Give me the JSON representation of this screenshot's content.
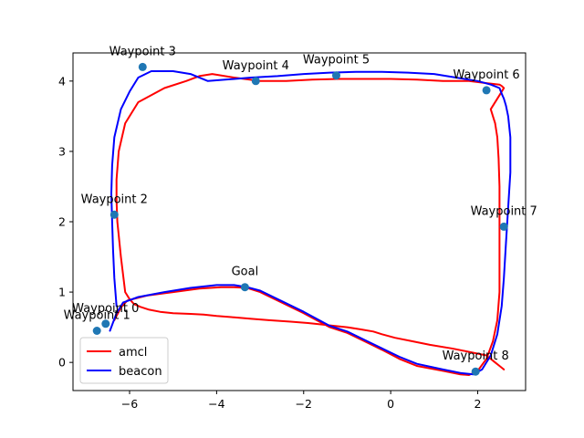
{
  "chart_data": {
    "type": "line",
    "title": "",
    "xlabel": "",
    "ylabel": "",
    "xlim": [
      -7.3,
      3.1
    ],
    "ylim": [
      -0.4,
      4.4
    ],
    "xticks": [
      -6,
      -4,
      -2,
      0,
      2
    ],
    "xtick_labels": [
      "−6",
      "−4",
      "−2",
      "0",
      "2"
    ],
    "yticks": [
      0,
      1,
      2,
      3,
      4
    ],
    "ytick_labels": [
      "0",
      "1",
      "2",
      "3",
      "4"
    ],
    "grid": false,
    "legend_position": "lower-left",
    "series": [
      {
        "name": "amcl",
        "color": "#ff0000",
        "x": [
          -6.35,
          -6.2,
          -6.05,
          -5.6,
          -5.0,
          -4.4,
          -3.9,
          -3.6,
          -3.3,
          -3.0,
          -2.6,
          -2.0,
          -1.4,
          -1.0,
          -0.6,
          -0.2,
          0.2,
          0.6,
          1.2,
          1.6,
          1.8,
          2.0,
          2.2,
          2.35,
          2.45,
          2.5,
          2.5,
          2.5,
          2.5,
          2.48,
          2.45,
          2.4,
          2.35,
          2.3,
          2.5,
          2.6,
          2.55,
          2.5,
          2.2,
          1.8,
          1.2,
          0.6,
          0.0,
          -0.6,
          -1.2,
          -1.8,
          -2.4,
          -3.0,
          -3.6,
          -4.1,
          -4.4,
          -4.7,
          -5.2,
          -5.8,
          -6.1,
          -6.25,
          -6.3,
          -6.3,
          -6.28,
          -6.2,
          -6.1,
          -6.0,
          -5.9,
          -5.75,
          -5.55,
          -5.3,
          -5.0,
          -4.6,
          -4.3,
          -4.0,
          -3.6,
          -3.2,
          -2.8,
          -2.3,
          -1.9,
          -1.6,
          -1.3,
          -1.0,
          -0.7,
          -0.4,
          -0.2,
          0.1,
          0.5,
          0.9,
          1.4,
          1.8,
          2.2,
          2.4,
          2.5,
          2.6
        ],
        "y": [
          0.6,
          0.78,
          0.88,
          0.95,
          1.0,
          1.05,
          1.07,
          1.07,
          1.06,
          1.0,
          0.88,
          0.7,
          0.5,
          0.42,
          0.3,
          0.18,
          0.05,
          -0.05,
          -0.12,
          -0.17,
          -0.18,
          -0.12,
          0.05,
          0.3,
          0.6,
          1.0,
          1.5,
          2.0,
          2.5,
          2.9,
          3.2,
          3.4,
          3.5,
          3.6,
          3.8,
          3.9,
          3.93,
          3.95,
          3.97,
          4.0,
          4.0,
          4.02,
          4.03,
          4.03,
          4.03,
          4.02,
          4.0,
          4.0,
          4.05,
          4.1,
          4.07,
          4.0,
          3.9,
          3.7,
          3.4,
          3.0,
          2.6,
          2.3,
          2.0,
          1.5,
          1.0,
          0.9,
          0.83,
          0.79,
          0.75,
          0.72,
          0.7,
          0.69,
          0.68,
          0.66,
          0.64,
          0.62,
          0.6,
          0.58,
          0.56,
          0.54,
          0.52,
          0.5,
          0.47,
          0.44,
          0.4,
          0.35,
          0.3,
          0.25,
          0.2,
          0.15,
          0.1,
          0.0,
          -0.05,
          -0.1
        ]
      },
      {
        "name": "beacon",
        "color": "#0000ff",
        "x": [
          -6.45,
          -6.3,
          -6.15,
          -5.8,
          -5.2,
          -4.6,
          -4.0,
          -3.6,
          -3.3,
          -3.0,
          -2.6,
          -2.0,
          -1.4,
          -1.0,
          -0.6,
          -0.2,
          0.2,
          0.6,
          1.2,
          1.6,
          1.9,
          2.1,
          2.3,
          2.45,
          2.55,
          2.6,
          2.65,
          2.7,
          2.75,
          2.75,
          2.7,
          2.65,
          2.6,
          2.55,
          2.5,
          2.3,
          2.0,
          1.5,
          1.0,
          0.4,
          -0.2,
          -0.8,
          -1.4,
          -2.0,
          -2.6,
          -3.2,
          -3.8,
          -4.2,
          -4.6,
          -5.0,
          -5.5,
          -5.8,
          -6.0,
          -6.2,
          -6.35,
          -6.4,
          -6.42,
          -6.4,
          -6.38,
          -6.35,
          -6.3
        ],
        "y": [
          0.45,
          0.7,
          0.85,
          0.93,
          1.0,
          1.06,
          1.1,
          1.1,
          1.07,
          1.02,
          0.9,
          0.72,
          0.52,
          0.44,
          0.32,
          0.2,
          0.08,
          -0.02,
          -0.1,
          -0.15,
          -0.17,
          -0.1,
          0.1,
          0.4,
          0.8,
          1.2,
          1.7,
          2.2,
          2.7,
          3.2,
          3.5,
          3.65,
          3.75,
          3.82,
          3.9,
          3.95,
          4.0,
          4.05,
          4.1,
          4.12,
          4.13,
          4.13,
          4.12,
          4.1,
          4.07,
          4.05,
          4.02,
          4.0,
          4.1,
          4.14,
          4.14,
          4.05,
          3.85,
          3.6,
          3.2,
          2.8,
          2.4,
          2.0,
          1.6,
          1.2,
          0.8
        ]
      }
    ],
    "points": {
      "color": "#1f77b4",
      "items": [
        {
          "label": "Waypoint 0",
          "x": -6.55,
          "y": 0.55
        },
        {
          "label": "Waypoint 1",
          "x": -6.75,
          "y": 0.45
        },
        {
          "label": "Waypoint 2",
          "x": -6.35,
          "y": 2.1
        },
        {
          "label": "Waypoint 3",
          "x": -5.7,
          "y": 4.2
        },
        {
          "label": "Waypoint 4",
          "x": -3.1,
          "y": 4.0
        },
        {
          "label": "Waypoint 5",
          "x": -1.25,
          "y": 4.08
        },
        {
          "label": "Waypoint 6",
          "x": 2.2,
          "y": 3.87
        },
        {
          "label": "Waypoint 7",
          "x": 2.6,
          "y": 1.93
        },
        {
          "label": "Waypoint 8",
          "x": 1.95,
          "y": -0.13
        },
        {
          "label": "Goal",
          "x": -3.35,
          "y": 1.07
        }
      ]
    },
    "legend": [
      {
        "label": "amcl",
        "color": "#ff0000"
      },
      {
        "label": "beacon",
        "color": "#0000ff"
      }
    ]
  }
}
